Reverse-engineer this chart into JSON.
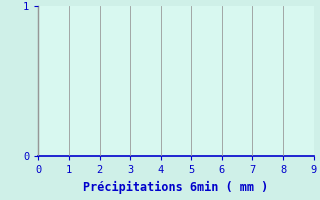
{
  "title": "",
  "xlabel": "Précipitations 6min ( mm )",
  "xlim": [
    0,
    9
  ],
  "ylim": [
    0,
    1
  ],
  "xticks": [
    0,
    1,
    2,
    3,
    4,
    5,
    6,
    7,
    8,
    9
  ],
  "yticks": [
    0,
    1
  ],
  "background_color": "#cff0e8",
  "plot_bg_color": "#d8f8f0",
  "grid_color": "#999999",
  "label_color": "#0000cc",
  "tick_color": "#0000cc",
  "bottom_spine_color": "#0000cc",
  "left_spine_color": "#888888",
  "xlabel_fontsize": 8.5,
  "tick_fontsize": 7.5
}
